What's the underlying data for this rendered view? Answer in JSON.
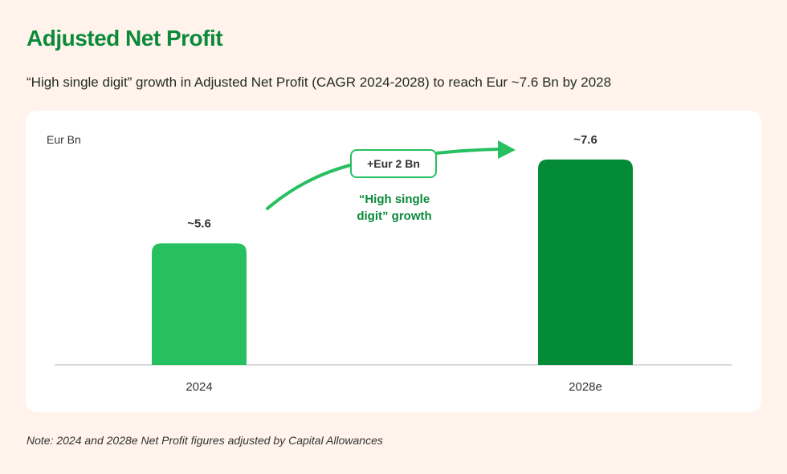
{
  "header": {
    "title": "Adjusted Net Profit",
    "subtitle": "“High single digit” growth in Adjusted Net Profit (CAGR 2024-2028) to reach Eur ~7.6 Bn by 2028"
  },
  "note": "Note: 2024 and 2028e Net Profit figures adjusted by Capital Allowances",
  "chart_data": {
    "type": "bar",
    "ylabel": "Eur Bn",
    "categories": [
      "2024",
      "2028e"
    ],
    "values": [
      5.6,
      7.6
    ],
    "data_labels": [
      "~5.6",
      "~7.6"
    ],
    "colors": [
      "#27c060",
      "#038b38"
    ],
    "ylim": [
      2.7,
      8.0
    ],
    "grid": false,
    "annotations": {
      "delta": "+Eur 2 Bn",
      "growth_line1": "“High single",
      "growth_line2": "digit” growth",
      "arrow_color": "#27c060",
      "text_color": "#0a8a3a"
    }
  }
}
